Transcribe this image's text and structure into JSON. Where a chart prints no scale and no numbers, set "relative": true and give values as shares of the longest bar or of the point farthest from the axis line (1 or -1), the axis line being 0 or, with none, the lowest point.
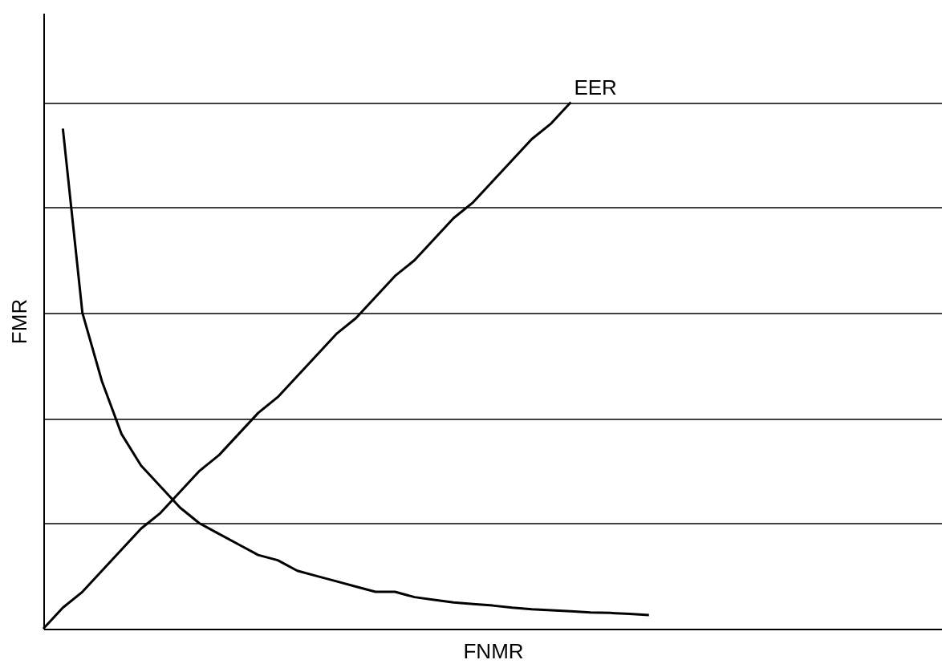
{
  "chart_data": {
    "type": "line",
    "relative": true,
    "xlabel": "FNMR",
    "ylabel": "FMR",
    "grid": "y",
    "marker": "none",
    "line_style": "solid",
    "categories": [
      null,
      null,
      null,
      null,
      null,
      null,
      null,
      null,
      null,
      null,
      null,
      null,
      null,
      null,
      null,
      null,
      null,
      null,
      null,
      null,
      null,
      null,
      null,
      null,
      null,
      null,
      null,
      null,
      null,
      null,
      null,
      null,
      null,
      null,
      null,
      null,
      null,
      null,
      null,
      null,
      null,
      null,
      null,
      null,
      null,
      null,
      null
    ],
    "series": [
      {
        "color": "#000000",
        "values": [
          null,
          0.95,
          0.6,
          0.47,
          0.37,
          0.31,
          0.27,
          0.23,
          0.2,
          0.18,
          0.16,
          0.14,
          0.13,
          0.11,
          0.1,
          0.09,
          0.08,
          0.07,
          0.07,
          0.06,
          0.055,
          0.05,
          0.047,
          0.044,
          0.04,
          0.037,
          0.035,
          0.033,
          0.031,
          0.03,
          0.028,
          0.026,
          null,
          null,
          null,
          null,
          null,
          null,
          null,
          null,
          null,
          null,
          null,
          null,
          null,
          null,
          null
        ]
      },
      {
        "name": "EER",
        "color": "#000000",
        "values": [
          0,
          0.04,
          0.07,
          0.11,
          0.15,
          0.19,
          0.22,
          0.26,
          0.3,
          0.33,
          0.37,
          0.41,
          0.44,
          0.48,
          0.52,
          0.56,
          0.59,
          0.63,
          0.67,
          0.7,
          0.74,
          0.78,
          0.81,
          0.85,
          0.89,
          0.93,
          0.96,
          1,
          null,
          null,
          null,
          null,
          null,
          null,
          null,
          null,
          null,
          null,
          null,
          null,
          null,
          null,
          null,
          null,
          null,
          null,
          null
        ]
      }
    ]
  }
}
